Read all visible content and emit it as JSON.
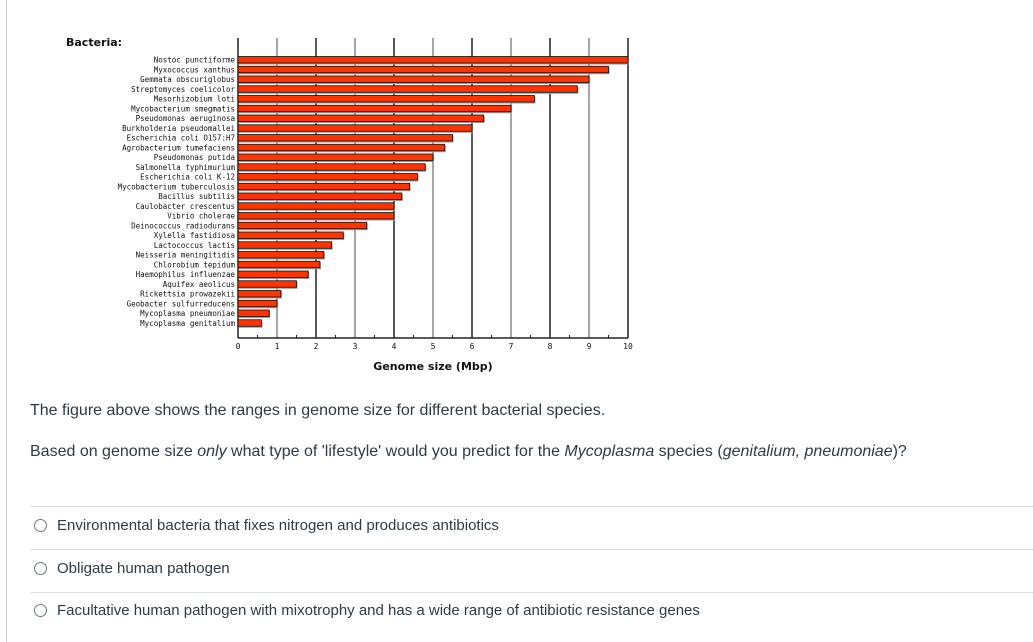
{
  "chart_data": {
    "type": "bar",
    "orientation": "horizontal",
    "title": "Bacteria:",
    "xlabel": "Genome size (Mbp)",
    "ylabel": "",
    "xlim": [
      0,
      10
    ],
    "xticks": [
      0,
      1,
      2,
      3,
      4,
      5,
      6,
      7,
      8,
      9,
      10
    ],
    "grid": true,
    "bar_color": "#ff3300",
    "categories": [
      "Nostoc punctiforme",
      "Myxococcus xanthus",
      "Gemmata obscuriglobus",
      "Streptomyces coelicolor",
      "Mesorhizobium loti",
      "Mycobacterium smegmatis",
      "Pseudomonas aeruginosa",
      "Burkholderia pseudomallei",
      "Escherichia coli O157:H7",
      "Agrobacterium tumefaciens",
      "Pseudomonas putida",
      "Salmonella typhimurium",
      "Escherichia coli K-12",
      "Mycobacterium tuberculosis",
      "Bacillus subtilis",
      "Caulobacter crescentus",
      "Vibrio cholerae",
      "Deinococcus radiodurans",
      "Xylella fastidiosa",
      "Lactococcus lactis",
      "Neisseria meningitidis",
      "Chlorobium tepidum",
      "Haemophilus influenzae",
      "Aquifex aeolicus",
      "Rickettsia prowazekii",
      "Geobacter sulfurreducens",
      "Mycoplasma pneumoniae",
      "Mycoplasma genitalium"
    ],
    "values": [
      10.0,
      9.5,
      9.0,
      8.7,
      7.6,
      7.0,
      6.3,
      6.0,
      5.5,
      5.3,
      5.0,
      4.8,
      4.6,
      4.4,
      4.2,
      4.0,
      4.0,
      3.3,
      2.7,
      2.4,
      2.2,
      2.1,
      1.8,
      1.5,
      1.1,
      1.0,
      0.8,
      0.6
    ]
  },
  "question": {
    "line1": "The figure above shows the ranges in genome size for different bacterial species.",
    "line2_pre": "Based on genome size ",
    "line2_em": "only",
    "line2_mid": " what type of 'lifestyle' would you predict for the ",
    "line2_em2": "Mycoplasma",
    "line2_mid2": " species (",
    "line2_em3": "genitalium, pneumoniae",
    "line2_post": ")?"
  },
  "options": [
    {
      "label": "Environmental bacteria that fixes nitrogen and produces antibiotics",
      "selected": false
    },
    {
      "label": "Obligate human pathogen",
      "selected": false
    },
    {
      "label": "Facultative human pathogen with mixotrophy and has a wide range of antibiotic resistance genes",
      "selected": false
    }
  ]
}
